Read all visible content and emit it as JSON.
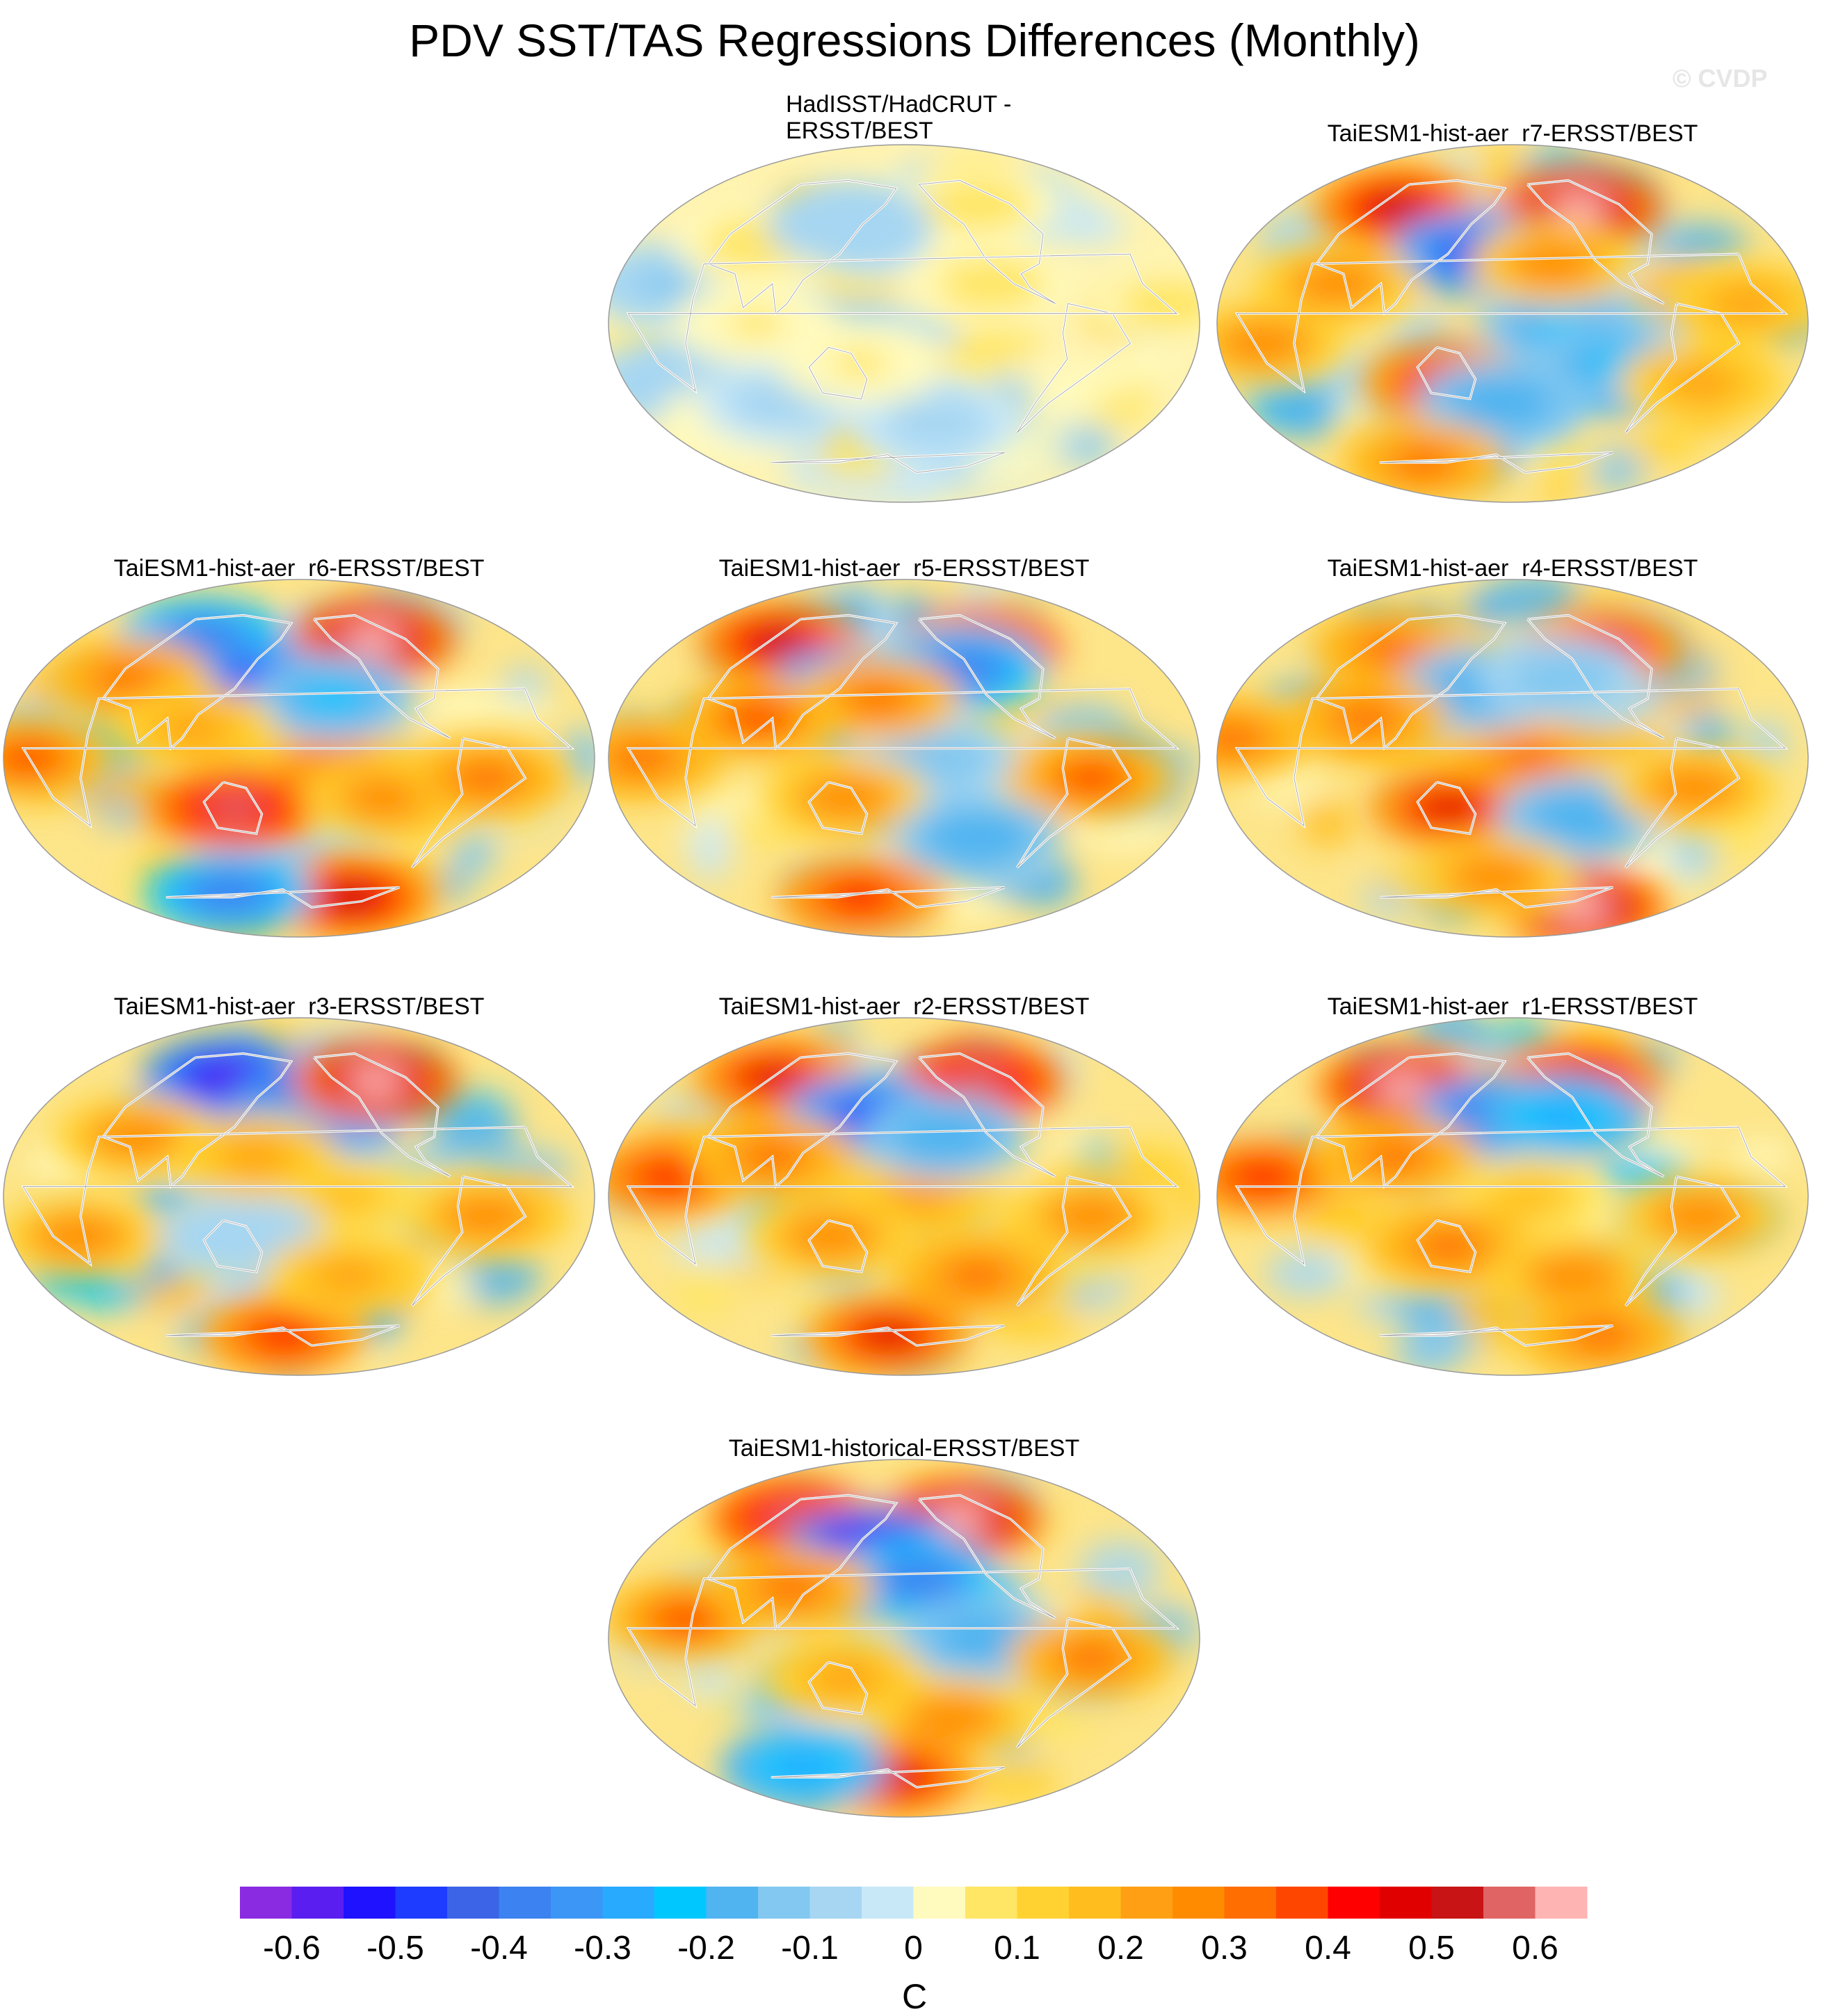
{
  "header": {
    "title": "PDV SST/TAS Regressions Differences (Monthly)",
    "watermark": "© CVDP"
  },
  "colors": {
    "ocean_outline": "#9a9a9a",
    "coast": "#ffffff",
    "coast_outline": "#555555"
  },
  "chart_data": {
    "type": "heatmap",
    "title": "PDV SST/TAS Regressions Differences (Monthly)",
    "projection": "Robinson (global, Pacific-centered)",
    "units": "C",
    "levels": [
      -0.65,
      -0.6,
      -0.55,
      -0.5,
      -0.45,
      -0.4,
      -0.35,
      -0.3,
      -0.25,
      -0.2,
      -0.15,
      -0.1,
      -0.05,
      0,
      0.05,
      0.1,
      0.15,
      0.2,
      0.25,
      0.3,
      0.35,
      0.4,
      0.45,
      0.5,
      0.55,
      0.6,
      0.65
    ],
    "colorbar_tick_labels": [
      "-0.6",
      "-0.5",
      "-0.4",
      "-0.3",
      "-0.2",
      "-0.1",
      "0",
      "0.1",
      "0.2",
      "0.3",
      "0.4",
      "0.5",
      "0.6"
    ],
    "colorbar_colors": [
      "#8a2be2",
      "#5a1ef0",
      "#1e12ff",
      "#1e3cff",
      "#3c64e6",
      "#3c82f0",
      "#3c96f5",
      "#28aaff",
      "#00c8ff",
      "#50b4f0",
      "#82c8f0",
      "#a6d6f2",
      "#c8e8f8",
      "#fffabe",
      "#ffe664",
      "#ffd232",
      "#ffbe1e",
      "#ffa014",
      "#ff8c00",
      "#ff6e00",
      "#ff4600",
      "#ff0000",
      "#e10000",
      "#c81414",
      "#e06464",
      "#ffb4b4"
    ],
    "panels": [
      {
        "title": "HadISST/HadCRUT -\nERSST/BEST",
        "anomalies": [
          [
            20,
            20,
            -0.12
          ],
          [
            -30,
            10,
            -0.1
          ],
          [
            10,
            -10,
            0.08
          ],
          [
            -50,
            30,
            0.06
          ],
          [
            40,
            60,
            0.07
          ],
          [
            0,
            90,
            0.06
          ],
          [
            -40,
            80,
            -0.08
          ],
          [
            20,
            -120,
            0.07
          ],
          [
            -50,
            -150,
            -0.08
          ],
          [
            60,
            -100,
            0.07
          ],
          [
            -20,
            150,
            0.06
          ],
          [
            50,
            130,
            -0.1
          ]
        ]
      },
      {
        "title": "TaiESM1-hist-aer_r7-ERSST/BEST",
        "anomalies": [
          [
            58,
            -110,
            0.6
          ],
          [
            58,
            60,
            0.5
          ],
          [
            35,
            150,
            -0.5
          ],
          [
            0,
            -150,
            -0.25
          ],
          [
            -30,
            130,
            0.45
          ],
          [
            -40,
            170,
            -0.2
          ],
          [
            -20,
            -110,
            -0.25
          ],
          [
            30,
            -150,
            0.25
          ],
          [
            20,
            60,
            0.25
          ],
          [
            -10,
            20,
            0.25
          ],
          [
            -70,
            60,
            0.3
          ],
          [
            -30,
            -40,
            0.2
          ],
          [
            10,
            -30,
            0.2
          ]
        ]
      },
      {
        "title": "TaiESM1-hist-aer_r6-ERSST/BEST",
        "anomalies": [
          [
            60,
            -100,
            0.6
          ],
          [
            60,
            75,
            -0.4
          ],
          [
            35,
            160,
            -0.6
          ],
          [
            0,
            -160,
            0.25
          ],
          [
            -25,
            135,
            0.55
          ],
          [
            30,
            -155,
            -0.25
          ],
          [
            -20,
            -120,
            0.25
          ],
          [
            -70,
            -110,
            0.5
          ],
          [
            -68,
            90,
            -0.4
          ],
          [
            0,
            15,
            0.35
          ],
          [
            40,
            40,
            0.3
          ],
          [
            -10,
            -60,
            0.3
          ],
          [
            15,
            110,
            0.2
          ]
        ]
      },
      {
        "title": "TaiESM1-hist-aer_r5-ERSST/BEST",
        "anomalies": [
          [
            55,
            -105,
            0.6
          ],
          [
            58,
            50,
            0.5
          ],
          [
            35,
            140,
            -0.5
          ],
          [
            45,
            -130,
            -0.4
          ],
          [
            0,
            -160,
            -0.15
          ],
          [
            30,
            160,
            0.3
          ],
          [
            -20,
            140,
            0.25
          ],
          [
            -10,
            -60,
            0.35
          ],
          [
            0,
            20,
            0.3
          ],
          [
            -40,
            -120,
            -0.2
          ],
          [
            -70,
            120,
            0.4
          ],
          [
            20,
            80,
            0.35
          ]
        ]
      },
      {
        "title": "TaiESM1-hist-aer_r4-ERSST/BEST",
        "anomalies": [
          [
            55,
            -90,
            0.45
          ],
          [
            55,
            60,
            0.3
          ],
          [
            0,
            -170,
            0.3
          ],
          [
            35,
            155,
            -0.2
          ],
          [
            -25,
            135,
            0.45
          ],
          [
            -30,
            -130,
            -0.2
          ],
          [
            -75,
            -70,
            0.6
          ],
          [
            10,
            0,
            0.3
          ],
          [
            -15,
            -60,
            0.25
          ],
          [
            40,
            -140,
            -0.15
          ],
          [
            20,
            80,
            0.3
          ],
          [
            -60,
            160,
            0.25
          ]
        ]
      },
      {
        "title": "TaiESM1-hist-aer_r3-ERSST/BEST",
        "anomalies": [
          [
            60,
            100,
            -0.6
          ],
          [
            45,
            -170,
            -0.55
          ],
          [
            30,
            -170,
            -0.35
          ],
          [
            58,
            -100,
            0.6
          ],
          [
            0,
            -150,
            0.15
          ],
          [
            -20,
            140,
            -0.1
          ],
          [
            -70,
            160,
            0.4
          ],
          [
            30,
            60,
            0.25
          ],
          [
            -20,
            30,
            0.25
          ],
          [
            -10,
            -60,
            0.25
          ],
          [
            -40,
            -140,
            0.2
          ],
          [
            20,
            150,
            0.2
          ]
        ]
      },
      {
        "title": "TaiESM1-hist-aer_r2-ERSST/BEST",
        "anomalies": [
          [
            58,
            -100,
            0.55
          ],
          [
            60,
            40,
            0.45
          ],
          [
            40,
            150,
            -0.5
          ],
          [
            10,
            30,
            0.4
          ],
          [
            0,
            -170,
            0.2
          ],
          [
            30,
            -150,
            -0.2
          ],
          [
            -20,
            130,
            0.25
          ],
          [
            -40,
            -120,
            0.3
          ],
          [
            -70,
            160,
            0.45
          ],
          [
            -10,
            -60,
            0.25
          ],
          [
            20,
            90,
            0.3
          ]
        ]
      },
      {
        "title": "TaiESM1-hist-aer_r1-ERSST/BEST",
        "anomalies": [
          [
            55,
            70,
            0.6
          ],
          [
            58,
            -110,
            0.5
          ],
          [
            40,
            170,
            -0.5
          ],
          [
            40,
            -140,
            -0.3
          ],
          [
            10,
            20,
            0.4
          ],
          [
            0,
            -170,
            0.15
          ],
          [
            -25,
            135,
            0.3
          ],
          [
            -40,
            -130,
            0.25
          ],
          [
            -70,
            -60,
            0.3
          ],
          [
            -10,
            -60,
            0.25
          ],
          [
            20,
            100,
            0.3
          ]
        ]
      },
      {
        "title": "TaiESM1-historical-ERSST/BEST",
        "anomalies": [
          [
            60,
            60,
            0.55
          ],
          [
            60,
            -120,
            0.6
          ],
          [
            45,
            150,
            -0.65
          ],
          [
            30,
            -170,
            -0.4
          ],
          [
            0,
            -130,
            -0.2
          ],
          [
            10,
            40,
            0.35
          ],
          [
            -20,
            140,
            0.2
          ],
          [
            -40,
            -140,
            0.25
          ],
          [
            -70,
            170,
            0.45
          ],
          [
            -65,
            60,
            -0.3
          ],
          [
            -10,
            -60,
            0.3
          ],
          [
            25,
            100,
            0.3
          ]
        ]
      }
    ]
  }
}
